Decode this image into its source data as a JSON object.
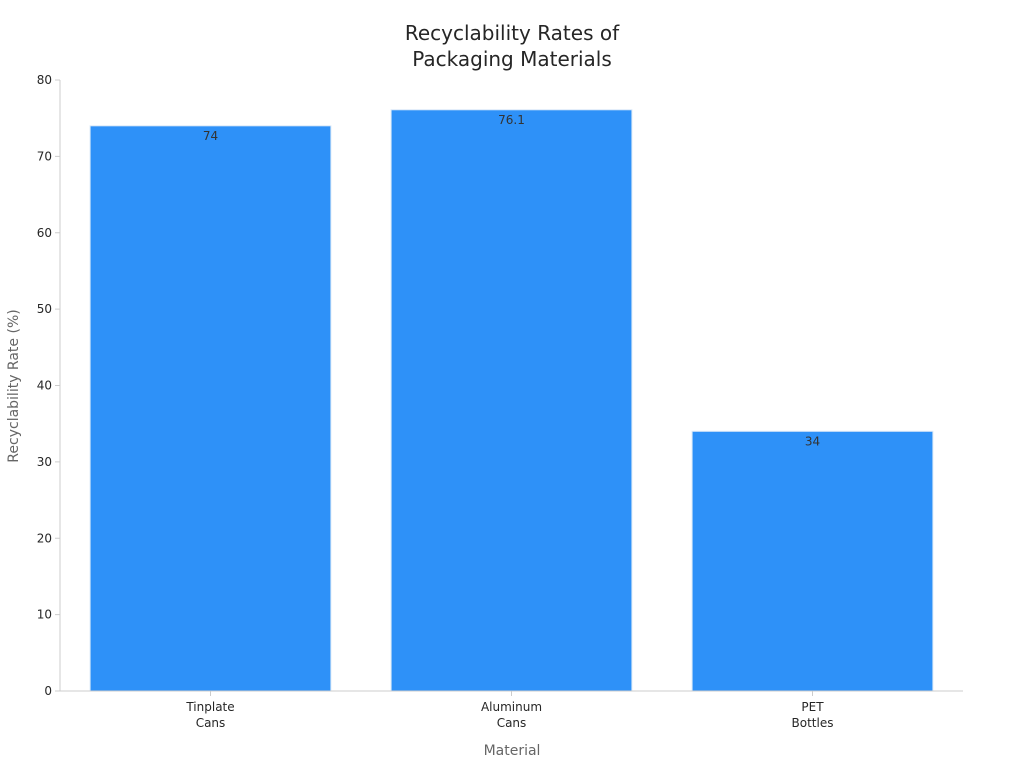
{
  "chart_data": {
    "type": "bar",
    "title": [
      "Recyclability Rates of",
      "Packaging Materials"
    ],
    "xlabel": "Material",
    "ylabel": "Recyclability Rate (%)",
    "categories": [
      [
        "Tinplate",
        "Cans"
      ],
      [
        "Aluminum",
        "Cans"
      ],
      [
        "PET",
        "Bottles"
      ]
    ],
    "values": [
      74,
      76.1,
      34
    ],
    "value_labels": [
      "74",
      "76.1",
      "34"
    ],
    "ylim": [
      0,
      80
    ],
    "yticks": [
      0,
      10,
      20,
      30,
      40,
      50,
      60,
      70,
      80
    ],
    "grid": false,
    "legend": "none",
    "bar_color": "#2E91F8",
    "bar_edge_color": "#D9E8F7"
  }
}
